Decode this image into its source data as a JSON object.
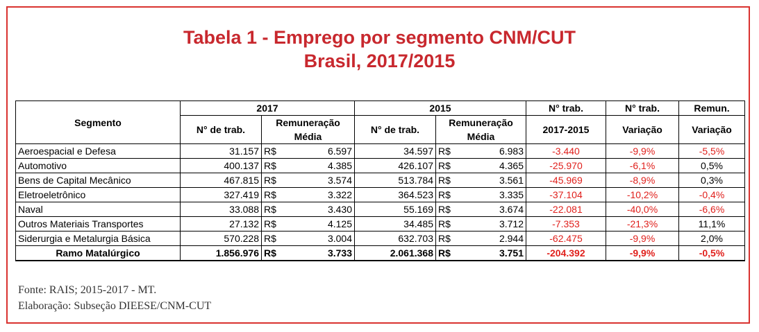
{
  "title": {
    "line1": "Tabela 1 - Emprego por segmento CNM/CUT",
    "line2": "Brasil, 2017/2015"
  },
  "table": {
    "header": {
      "segmento": "Segmento",
      "year_2017": "2017",
      "year_2015": "2015",
      "ntrab_top": "N° trab.",
      "ntrab2_top": "N° trab.",
      "remun_top": "Remun.",
      "ntrab_2017": "N° de trab.",
      "remun_2017": "Remuneração Média",
      "ntrab_2015": "N° de trab.",
      "remun_2015": "Remuneração Média",
      "periodo": "2017-2015",
      "variacao1": "Variação",
      "variacao2": "Variação"
    },
    "rows": [
      {
        "segmento": "Aeroespacial e Defesa",
        "ntrab2017": "31.157",
        "cur2017": "R$",
        "rem2017": "6.597",
        "ntrab2015": "34.597",
        "cur2015": "R$",
        "rem2015": "6.983",
        "diff": "-3.440",
        "var": "-9,9%",
        "remvar": "-5,5%",
        "remvar_neg": true
      },
      {
        "segmento": "Automotivo",
        "ntrab2017": "400.137",
        "cur2017": "R$",
        "rem2017": "4.385",
        "ntrab2015": "426.107",
        "cur2015": "R$",
        "rem2015": "4.365",
        "diff": "-25.970",
        "var": "-6,1%",
        "remvar": "0,5%",
        "remvar_neg": false
      },
      {
        "segmento": "Bens de Capital Mecânico",
        "ntrab2017": "467.815",
        "cur2017": "R$",
        "rem2017": "3.574",
        "ntrab2015": "513.784",
        "cur2015": "R$",
        "rem2015": "3.561",
        "diff": "-45.969",
        "var": "-8,9%",
        "remvar": "0,3%",
        "remvar_neg": false
      },
      {
        "segmento": "Eletroeletrônico",
        "ntrab2017": "327.419",
        "cur2017": "R$",
        "rem2017": "3.322",
        "ntrab2015": "364.523",
        "cur2015": "R$",
        "rem2015": "3.335",
        "diff": "-37.104",
        "var": "-10,2%",
        "remvar": "-0,4%",
        "remvar_neg": true
      },
      {
        "segmento": "Naval",
        "ntrab2017": "33.088",
        "cur2017": "R$",
        "rem2017": "3.430",
        "ntrab2015": "55.169",
        "cur2015": "R$",
        "rem2015": "3.674",
        "diff": "-22.081",
        "var": "-40,0%",
        "remvar": "-6,6%",
        "remvar_neg": true
      },
      {
        "segmento": "Outros Materiais Transportes",
        "ntrab2017": "27.132",
        "cur2017": "R$",
        "rem2017": "4.125",
        "ntrab2015": "34.485",
        "cur2015": "R$",
        "rem2015": "3.712",
        "diff": "-7.353",
        "var": "-21,3%",
        "remvar": "11,1%",
        "remvar_neg": false
      },
      {
        "segmento": "Siderurgia e Metalurgia Básica",
        "ntrab2017": "570.228",
        "cur2017": "R$",
        "rem2017": "3.004",
        "ntrab2015": "632.703",
        "cur2015": "R$",
        "rem2015": "2.944",
        "diff": "-62.475",
        "var": "-9,9%",
        "remvar": "2,0%",
        "remvar_neg": false
      }
    ],
    "total": {
      "segmento": "Ramo Matalúrgico",
      "ntrab2017": "1.856.976",
      "cur2017": "R$",
      "rem2017": "3.733",
      "ntrab2015": "2.061.368",
      "cur2015": "R$",
      "rem2015": "3.751",
      "diff": "-204.392",
      "var": "-9,9%",
      "remvar": "-0,5%"
    }
  },
  "footer": {
    "fonte": "Fonte: RAIS; 2015-2017 - MT.",
    "elaboracao": "Elaboração: Subseção DIEESE/CNM-CUT"
  },
  "colors": {
    "title": "#c8282e",
    "border": "#d9322f",
    "negative": "#e0201c"
  }
}
